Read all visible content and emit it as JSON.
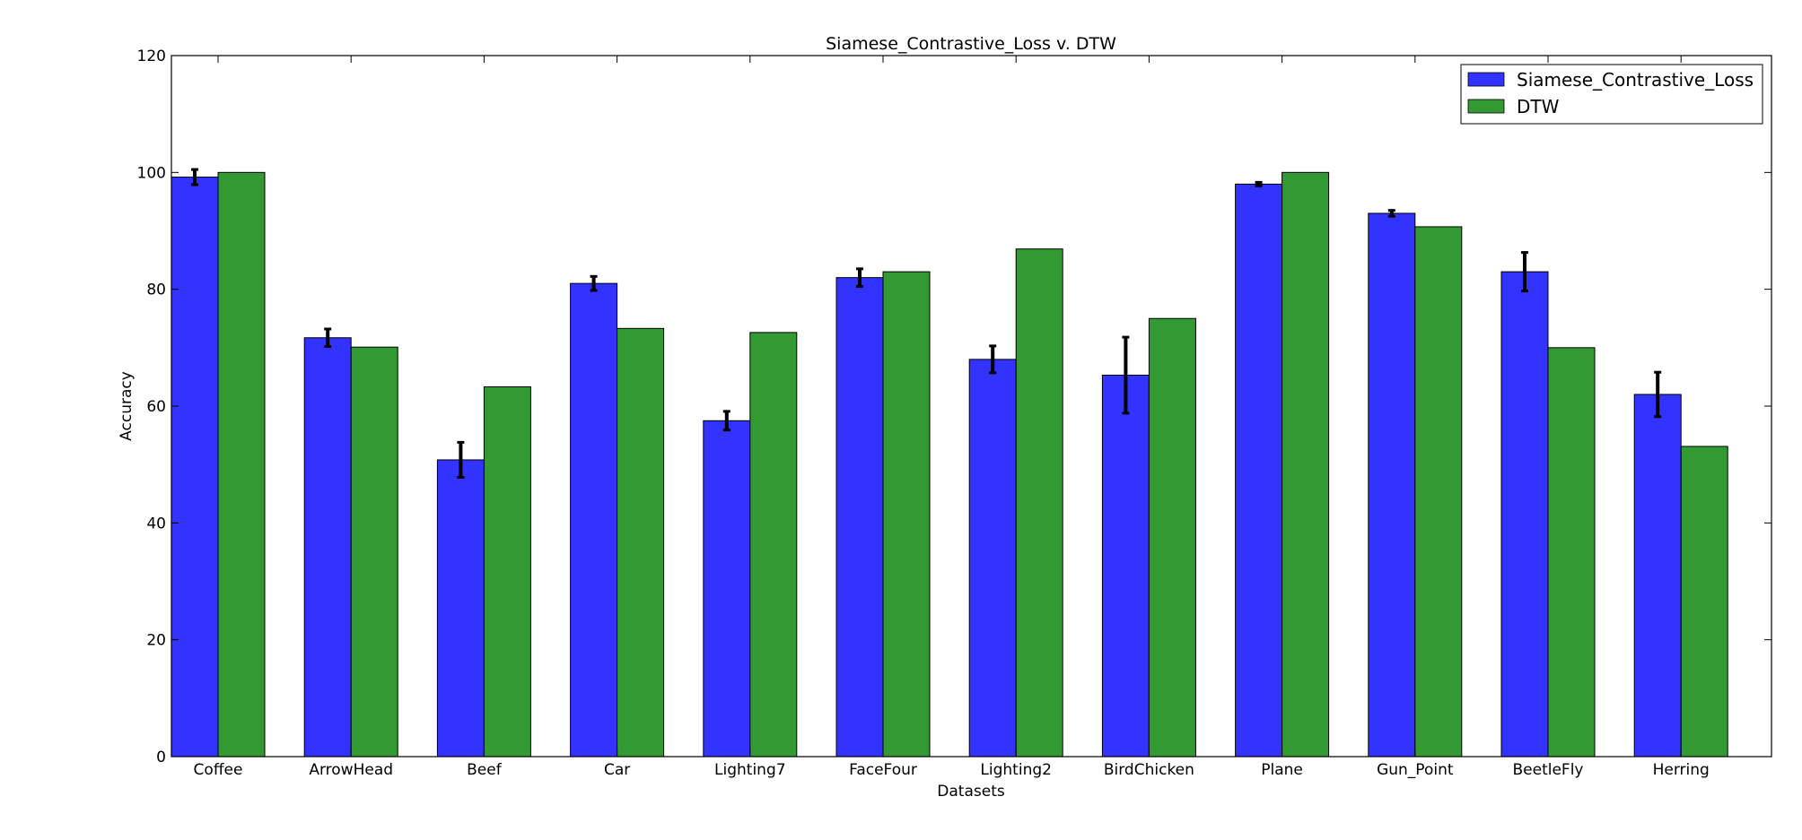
{
  "chart_data": {
    "type": "bar",
    "title": "Siamese_Contrastive_Loss v. DTW",
    "xlabel": "Datasets",
    "ylabel": "Accuracy",
    "ylim": [
      0,
      120
    ],
    "yticks": [
      0,
      20,
      40,
      60,
      80,
      100,
      120
    ],
    "grid": false,
    "legend_position": "top-right",
    "categories": [
      "Coffee",
      "ArrowHead",
      "Beef",
      "Car",
      "Lighting7",
      "FaceFour",
      "Lighting2",
      "BirdChicken",
      "Plane",
      "Gun_Point",
      "BeetleFly",
      "Herring"
    ],
    "series": [
      {
        "name": "Siamese_Contrastive_Loss",
        "color": "#3333ff",
        "values": [
          99.2,
          71.7,
          50.8,
          81.0,
          57.5,
          82.0,
          68.0,
          65.3,
          98.0,
          93.0,
          83.0,
          62.0
        ],
        "error": [
          1.3,
          1.5,
          3.0,
          1.2,
          1.6,
          1.5,
          2.3,
          6.5,
          0.3,
          0.5,
          3.3,
          3.8
        ]
      },
      {
        "name": "DTW",
        "color": "#339933",
        "values": [
          100.0,
          70.1,
          63.3,
          73.3,
          72.6,
          83.0,
          86.9,
          75.0,
          100.0,
          90.7,
          70.0,
          53.1
        ]
      }
    ]
  }
}
